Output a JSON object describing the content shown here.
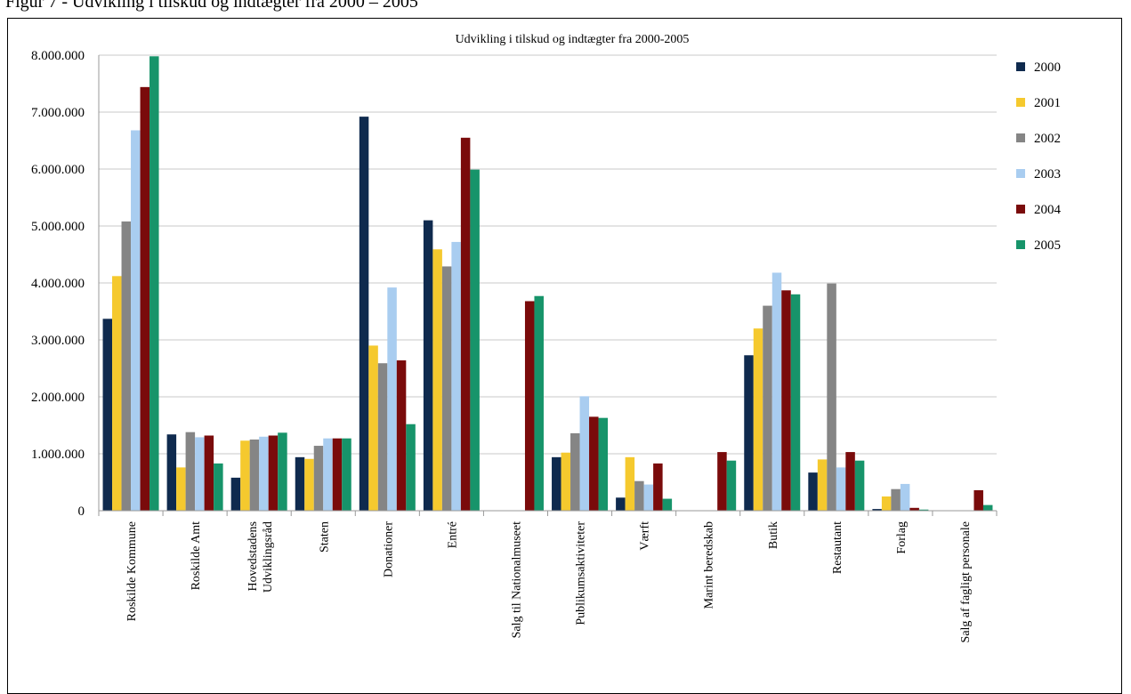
{
  "figure_caption": "Figur 7 - Udvikling i tilskud og indtægter fra 2000 – 2005",
  "chart_data": {
    "type": "bar",
    "title": "Udvikling i tilskud og indtægter fra 2000-2005",
    "xlabel": "",
    "ylabel": "",
    "ylim": [
      0,
      8000000
    ],
    "yticks": [
      0,
      1000000,
      2000000,
      3000000,
      4000000,
      5000000,
      6000000,
      7000000,
      8000000
    ],
    "ytick_labels": [
      "0",
      "1.000.000",
      "2.000.000",
      "3.000.000",
      "4.000.000",
      "5.000.000",
      "6.000.000",
      "7.000.000",
      "8.000.000"
    ],
    "grid": true,
    "legend_position": "right",
    "categories": [
      "Roskilde Kommune",
      "Roskilde Amt",
      "Hovedstadens\nUdviklingsråd",
      "Staten",
      "Donationer",
      "Entré",
      "Salg til Nationalmuseet",
      "Publikumsaktiviteter",
      "Værft",
      "Marint beredskab",
      "Butik",
      "Restautant",
      "Forlag",
      "Salg af fagligt personale"
    ],
    "series": [
      {
        "name": "2000",
        "color": "#0f2a4e",
        "values": [
          3370000,
          1340000,
          580000,
          940000,
          6920000,
          5100000,
          0,
          940000,
          230000,
          0,
          2730000,
          670000,
          30000,
          0
        ]
      },
      {
        "name": "2001",
        "color": "#f5c92e",
        "values": [
          4120000,
          760000,
          1230000,
          910000,
          2900000,
          4590000,
          0,
          1020000,
          940000,
          0,
          3200000,
          900000,
          250000,
          0
        ]
      },
      {
        "name": "2002",
        "color": "#858585",
        "values": [
          5080000,
          1380000,
          1250000,
          1140000,
          2590000,
          4290000,
          0,
          1360000,
          520000,
          0,
          3600000,
          3990000,
          380000,
          0
        ]
      },
      {
        "name": "2003",
        "color": "#a9cdf0",
        "values": [
          6680000,
          1290000,
          1300000,
          1270000,
          3920000,
          4720000,
          0,
          2010000,
          460000,
          0,
          4180000,
          760000,
          470000,
          0
        ]
      },
      {
        "name": "2004",
        "color": "#7a0b0b",
        "values": [
          7440000,
          1320000,
          1320000,
          1270000,
          2640000,
          6550000,
          3680000,
          1650000,
          830000,
          1030000,
          3870000,
          1030000,
          50000,
          360000
        ]
      },
      {
        "name": "2005",
        "color": "#17946a",
        "values": [
          7980000,
          830000,
          1370000,
          1270000,
          1520000,
          5990000,
          3770000,
          1630000,
          210000,
          880000,
          3800000,
          880000,
          20000,
          100000
        ]
      }
    ]
  }
}
